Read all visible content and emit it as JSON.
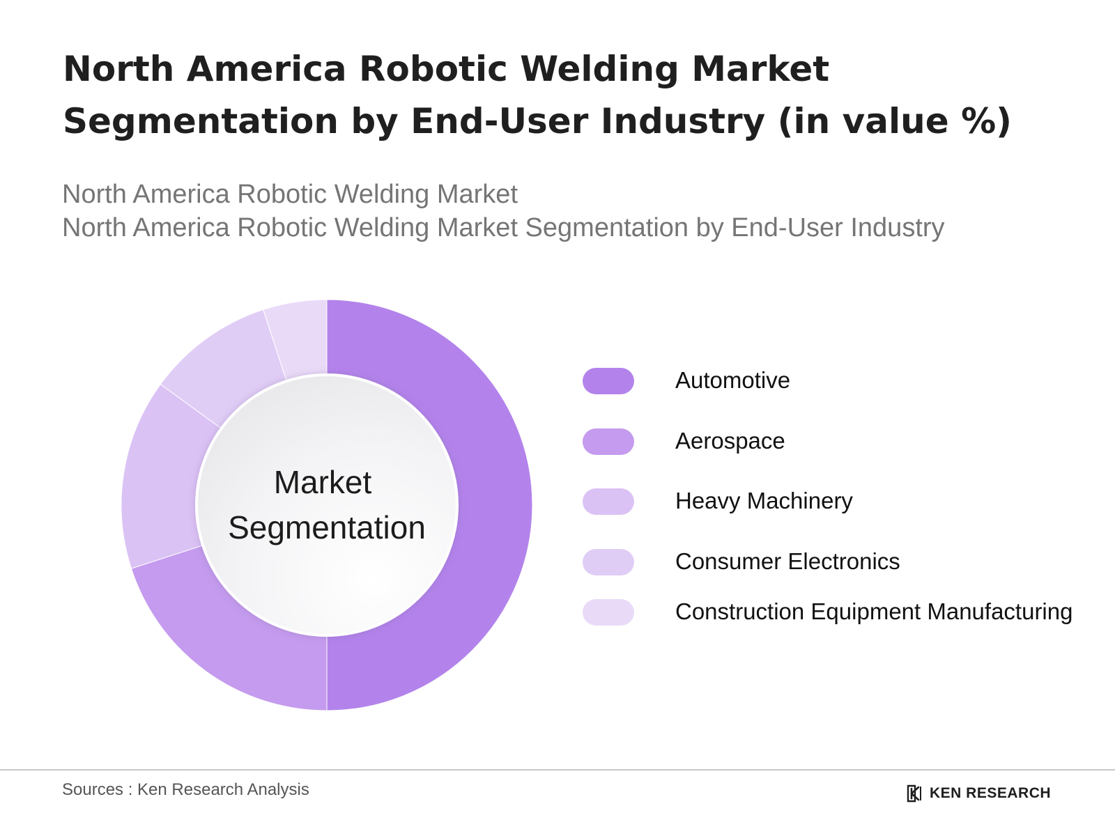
{
  "header": {
    "title": "North America Robotic Welding Market Segmentation by End-User Industry (in value %)",
    "subtitle_1": "North America Robotic Welding Market",
    "subtitle_2": "North America Robotic Welding Market Segmentation by End-User Industry"
  },
  "chart_data": {
    "type": "pie",
    "variant": "donut",
    "center_label_line_1": "Market",
    "center_label_line_2": "Segmentation",
    "categories": [
      "Automotive",
      "Aerospace",
      "Heavy Machinery",
      "Consumer Electronics",
      "Construction Equipment Manufacturing"
    ],
    "values": [
      50,
      20,
      15,
      10,
      5
    ],
    "unit": "%",
    "colors": [
      "#b383eb",
      "#c49bee",
      "#dbc2f5",
      "#e0cdf6",
      "#e9dbf8"
    ],
    "legend_position": "right",
    "start_angle": "12 o'clock, clockwise"
  },
  "footer": {
    "source": "Sources : Ken Research Analysis",
    "brand": "KEN RESEARCH",
    "brand_icon": "ken-research-logo-icon",
    "divider_color": "#c8c8c8"
  }
}
